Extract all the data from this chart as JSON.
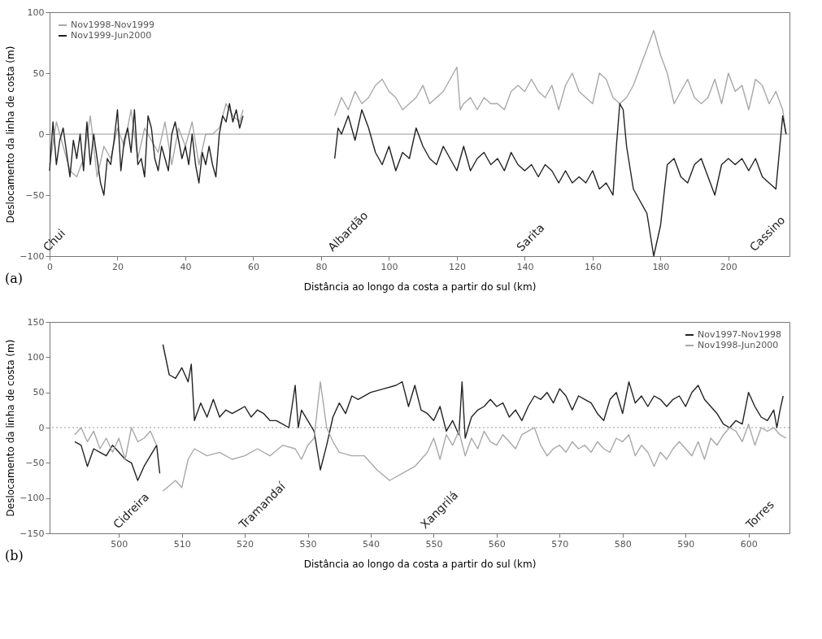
{
  "chart_data": [
    {
      "type": "line",
      "xlabel": "Distância ao longo da costa a partir do sul (km)",
      "ylabel": "Deslocamento da linha de costa (m)",
      "xlim": [
        0,
        218
      ],
      "xticks": [
        0,
        20,
        40,
        60,
        80,
        100,
        120,
        140,
        160,
        180,
        200
      ],
      "ylim": [
        -100,
        100
      ],
      "yticks": [
        -100,
        -50,
        0,
        50,
        100
      ],
      "grid": false,
      "legend": "top left",
      "ref_lines": [
        {
          "axis": "y",
          "value": 0,
          "line_style": "solid",
          "color": "#999999"
        }
      ],
      "annotations": [
        "(a)",
        "Chui",
        "Albardão",
        "Sarita",
        "Cassino"
      ],
      "series": [
        {
          "name": "Nov1998-Nov1999",
          "color": "#a8a8a8",
          "x": [
            0,
            2,
            4,
            6,
            8,
            10,
            12,
            14,
            16,
            18,
            20,
            22,
            24,
            26,
            28,
            30,
            32,
            34,
            36,
            38,
            40,
            42,
            44,
            46,
            48,
            50,
            52,
            54,
            56,
            57,
            70,
            84,
            86,
            88,
            90,
            92,
            94,
            96,
            98,
            100,
            102,
            104,
            106,
            108,
            110,
            112,
            114,
            116,
            118,
            120,
            121,
            122,
            124,
            126,
            128,
            130,
            132,
            134,
            136,
            138,
            140,
            142,
            144,
            146,
            148,
            150,
            152,
            154,
            156,
            158,
            160,
            162,
            164,
            166,
            168,
            170,
            172,
            174,
            176,
            178,
            180,
            182,
            184,
            186,
            188,
            190,
            192,
            194,
            196,
            198,
            200,
            202,
            204,
            206,
            208,
            210,
            212,
            214,
            216,
            217
          ],
          "values": [
            -25,
            10,
            -10,
            -30,
            -35,
            -20,
            15,
            -35,
            -10,
            -20,
            5,
            -10,
            20,
            -20,
            5,
            -5,
            -15,
            10,
            -25,
            5,
            -10,
            10,
            -25,
            0,
            0,
            5,
            25,
            15,
            10,
            20,
            null,
            15,
            30,
            20,
            35,
            25,
            30,
            40,
            45,
            35,
            30,
            20,
            25,
            30,
            40,
            25,
            30,
            35,
            45,
            55,
            20,
            25,
            30,
            20,
            30,
            25,
            25,
            20,
            35,
            40,
            35,
            45,
            35,
            30,
            40,
            20,
            40,
            50,
            35,
            30,
            25,
            50,
            45,
            30,
            25,
            30,
            40,
            55,
            70,
            85,
            65,
            50,
            25,
            35,
            45,
            30,
            25,
            30,
            45,
            25,
            50,
            35,
            40,
            20,
            45,
            40,
            25,
            35,
            20,
            0
          ]
        },
        {
          "name": "Nov1999-Jun2000",
          "color": "#222222",
          "x": [
            0,
            1,
            2,
            3,
            4,
            5,
            6,
            7,
            8,
            9,
            10,
            11,
            12,
            13,
            14,
            15,
            16,
            17,
            18,
            19,
            20,
            21,
            22,
            23,
            24,
            25,
            26,
            27,
            28,
            29,
            30,
            31,
            32,
            33,
            34,
            35,
            36,
            37,
            38,
            39,
            40,
            41,
            42,
            43,
            44,
            45,
            46,
            47,
            48,
            49,
            50,
            51,
            52,
            53,
            54,
            55,
            56,
            57,
            70,
            84,
            85,
            86,
            88,
            90,
            92,
            94,
            96,
            98,
            100,
            102,
            104,
            106,
            108,
            110,
            112,
            114,
            116,
            118,
            120,
            122,
            124,
            126,
            128,
            130,
            132,
            134,
            136,
            138,
            140,
            142,
            144,
            146,
            148,
            150,
            152,
            154,
            156,
            158,
            160,
            162,
            164,
            166,
            167,
            168,
            169,
            170,
            172,
            174,
            176,
            178,
            180,
            182,
            184,
            186,
            188,
            190,
            192,
            194,
            196,
            198,
            200,
            202,
            204,
            206,
            208,
            210,
            212,
            214,
            215,
            216,
            217
          ],
          "values": [
            -30,
            10,
            -25,
            -5,
            5,
            -15,
            -35,
            -5,
            -20,
            0,
            -30,
            10,
            -25,
            0,
            -20,
            -40,
            -50,
            -20,
            -25,
            -5,
            20,
            -30,
            -5,
            5,
            -15,
            20,
            -25,
            -20,
            -35,
            15,
            5,
            -20,
            -30,
            -10,
            -20,
            -30,
            0,
            10,
            -5,
            -20,
            -10,
            -25,
            0,
            -25,
            -40,
            -15,
            -25,
            -10,
            -25,
            -35,
            0,
            15,
            10,
            25,
            10,
            20,
            5,
            15,
            null,
            -20,
            5,
            0,
            15,
            -5,
            20,
            5,
            -15,
            -25,
            -10,
            -30,
            -15,
            -20,
            5,
            -10,
            -20,
            -25,
            -10,
            -20,
            -30,
            -10,
            -30,
            -20,
            -15,
            -25,
            -20,
            -30,
            -15,
            -25,
            -30,
            -25,
            -35,
            -25,
            -30,
            -40,
            -30,
            -40,
            -35,
            -40,
            -30,
            -45,
            -40,
            -50,
            -10,
            25,
            20,
            -10,
            -45,
            -55,
            -65,
            -100,
            -75,
            -25,
            -20,
            -35,
            -40,
            -25,
            -20,
            -35,
            -50,
            -25,
            -20,
            -25,
            -20,
            -30,
            -20,
            -35,
            -40,
            -45,
            -15,
            15,
            0
          ]
        }
      ]
    },
    {
      "type": "line",
      "xlabel": "Distância ao longo da costa a partir do sul (km)",
      "ylabel": "Deslocamento da linha de costa (m)",
      "xlim": [
        489,
        606.5
      ],
      "xticks": [
        500,
        510,
        520,
        530,
        540,
        550,
        560,
        570,
        580,
        590,
        600
      ],
      "ylim": [
        -150,
        150
      ],
      "yticks": [
        -150,
        -100,
        -50,
        0,
        50,
        100,
        150
      ],
      "grid": false,
      "legend": "top right",
      "ref_lines": [
        {
          "axis": "y",
          "value": 0,
          "line_style": "dotted",
          "color": "#999999"
        }
      ],
      "annotations": [
        "(b)",
        "Cidreira",
        "Tramandaí",
        "Xangrilá",
        "Torres"
      ],
      "series": [
        {
          "name": "Nov1997-Nov1998",
          "color": "#222222",
          "x": [
            493,
            494,
            495,
            496,
            497,
            498,
            499,
            500,
            501,
            502,
            503,
            504,
            505,
            506,
            506.5,
            506.7,
            507,
            508,
            509,
            510,
            511,
            511.5,
            512,
            513,
            514,
            515,
            516,
            517,
            518,
            519,
            520,
            521,
            522,
            523,
            524,
            525,
            526,
            527,
            528,
            528.5,
            529,
            530,
            531,
            532,
            533,
            534,
            535,
            536,
            537,
            538,
            540,
            542,
            544,
            545,
            546,
            547,
            548,
            549,
            550,
            551,
            552,
            553,
            554,
            554.5,
            555,
            556,
            557,
            558,
            559,
            560,
            561,
            562,
            563,
            564,
            565,
            566,
            567,
            568,
            569,
            570,
            571,
            572,
            573,
            574,
            575,
            576,
            577,
            578,
            579,
            580,
            581,
            582,
            583,
            584,
            585,
            586,
            587,
            588,
            589,
            590,
            591,
            592,
            593,
            594,
            595,
            596,
            597,
            598,
            599,
            600,
            601,
            602,
            603,
            604,
            604.5,
            605,
            605.5
          ],
          "values": [
            -20,
            -25,
            -55,
            -30,
            -35,
            -40,
            -25,
            -35,
            -45,
            -50,
            -75,
            -55,
            -40,
            -25,
            -65,
            null,
            118,
            75,
            70,
            85,
            65,
            90,
            10,
            35,
            15,
            40,
            15,
            25,
            20,
            25,
            30,
            15,
            25,
            20,
            10,
            10,
            5,
            0,
            60,
            0,
            25,
            10,
            -5,
            -60,
            -25,
            15,
            35,
            20,
            45,
            40,
            50,
            55,
            60,
            65,
            30,
            60,
            25,
            20,
            10,
            30,
            -5,
            10,
            -10,
            65,
            -15,
            15,
            25,
            30,
            40,
            30,
            35,
            15,
            25,
            10,
            30,
            45,
            40,
            50,
            35,
            55,
            45,
            25,
            45,
            40,
            35,
            20,
            10,
            40,
            50,
            20,
            65,
            35,
            45,
            30,
            45,
            40,
            30,
            40,
            45,
            30,
            50,
            60,
            40,
            30,
            20,
            5,
            0,
            10,
            5,
            50,
            30,
            15,
            10,
            25,
            0,
            25,
            45
          ]
        },
        {
          "name": "Nov1998-Jun2000",
          "color": "#a8a8a8",
          "x": [
            493,
            494,
            495,
            496,
            497,
            498,
            499,
            500,
            501,
            502,
            503,
            504,
            505,
            506,
            506.7,
            507,
            509,
            510,
            511,
            512,
            514,
            516,
            518,
            520,
            522,
            524,
            526,
            528,
            529,
            530,
            531,
            532,
            533,
            534,
            535,
            537,
            539,
            541,
            543,
            545,
            547,
            548,
            549,
            550,
            551,
            552,
            553,
            554,
            555,
            556,
            557,
            558,
            559,
            560,
            561,
            562,
            563,
            564,
            565,
            566,
            567,
            568,
            569,
            570,
            571,
            572,
            573,
            574,
            575,
            576,
            577,
            578,
            579,
            580,
            581,
            582,
            583,
            584,
            585,
            586,
            587,
            588,
            589,
            590,
            591,
            592,
            593,
            594,
            595,
            596,
            597,
            598,
            599,
            600,
            601,
            602,
            603,
            604,
            605,
            606
          ],
          "values": [
            -10,
            0,
            -20,
            -5,
            -30,
            -15,
            -35,
            -15,
            -45,
            0,
            -20,
            -15,
            -5,
            -25,
            null,
            -90,
            -75,
            -85,
            -45,
            -30,
            -40,
            -35,
            -45,
            -40,
            -30,
            -40,
            -25,
            -30,
            -45,
            -25,
            -15,
            65,
            0,
            -20,
            -35,
            -40,
            -40,
            -60,
            -75,
            -65,
            -55,
            -45,
            -35,
            -15,
            -45,
            -10,
            -25,
            -5,
            -40,
            -15,
            -30,
            -5,
            -20,
            -25,
            -10,
            -20,
            -30,
            -10,
            -5,
            0,
            -25,
            -40,
            -30,
            -25,
            -35,
            -20,
            -30,
            -25,
            -35,
            -20,
            -30,
            -35,
            -15,
            -20,
            -10,
            -40,
            -25,
            -35,
            -55,
            -35,
            -45,
            -30,
            -20,
            -30,
            -40,
            -20,
            -45,
            -15,
            -25,
            -10,
            0,
            -5,
            -20,
            5,
            -25,
            0,
            -5,
            0,
            -10,
            -15
          ]
        }
      ]
    }
  ]
}
